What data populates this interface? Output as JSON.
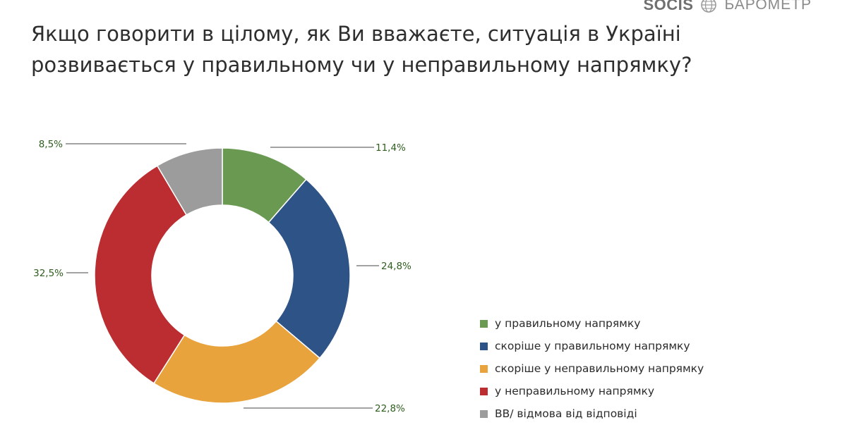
{
  "brand": {
    "logo": "SOCIS",
    "name": "БАРОМЕТР"
  },
  "title_lines": [
    "Якщо говорити в цілому, як Ви вважаєте, ситуація в Україні",
    "розвивається у правильному чи у неправильному напрямку?"
  ],
  "chart_data": {
    "type": "pie",
    "donut": true,
    "title": "Якщо говорити в цілому, як Ви вважаєте, ситуація в Україні розвивається у правильному чи у неправильному напрямку?",
    "slices": [
      {
        "label": "у правильному напрямку",
        "value": 11.4,
        "value_label": "11,4%",
        "color": "#6a9a52"
      },
      {
        "label": "скоріше у правильному напрямку",
        "value": 24.8,
        "value_label": "24,8%",
        "color": "#2e5387"
      },
      {
        "label": "скоріше у неправильному напрямку",
        "value": 22.8,
        "value_label": "22,8%",
        "color": "#e8a33d"
      },
      {
        "label": "у неправильному напрямку",
        "value": 32.5,
        "value_label": "32,5%",
        "color": "#bb2d31"
      },
      {
        "label": "ВВ/ відмова від відповіді",
        "value": 8.5,
        "value_label": "8,5%",
        "color": "#9c9c9c"
      }
    ],
    "legend_position": "bottom-right",
    "label_color": "#2f5e1f"
  }
}
